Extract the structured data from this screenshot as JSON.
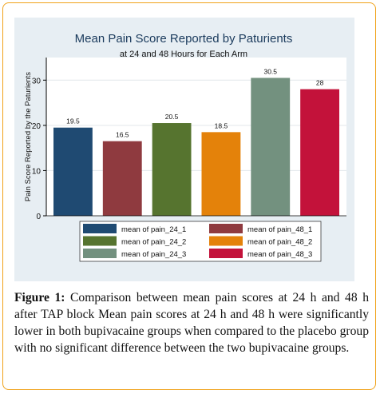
{
  "chart_data": {
    "type": "bar",
    "title": "Mean Pain Score Reported by Paturients",
    "subtitle": "at 24 and 48 Hours for Each Arm",
    "ylabel": "Pain Score Reported by the Paturients",
    "xlabel": "",
    "ylim": [
      0,
      35
    ],
    "yticks": [
      0,
      10,
      20,
      30
    ],
    "grid": true,
    "legend_position": "bottom",
    "series": [
      {
        "name": "mean of pain_24_1",
        "value": 19.5,
        "label": "19.5",
        "color": "#1f4a72"
      },
      {
        "name": "mean of pain_48_1",
        "value": 16.5,
        "label": "16.5",
        "color": "#8f3a3f"
      },
      {
        "name": "mean of pain_24_2",
        "value": 20.5,
        "label": "20.5",
        "color": "#56742f"
      },
      {
        "name": "mean of pain_48_2",
        "value": 18.5,
        "label": "18.5",
        "color": "#e4820a"
      },
      {
        "name": "mean of pain_24_3",
        "value": 30.5,
        "label": "30.5",
        "color": "#73917f"
      },
      {
        "name": "mean of pain_48_3",
        "value": 28,
        "label": "28",
        "color": "#c3123a"
      }
    ]
  },
  "caption": {
    "label": "Figure 1:",
    "text": " Comparison between mean pain scores at 24 h and 48 h after TAP block Mean pain scores at 24 h and 48 h were significantly lower in both bupivacaine groups when compared to the placebo group with no significant difference between the two bupivacaine groups."
  },
  "colors": {
    "outer_bg": "#e7eef3",
    "plot_bg": "#ffffff",
    "frame_border": "#f0a21a",
    "title_color": "#1a3a5c"
  }
}
